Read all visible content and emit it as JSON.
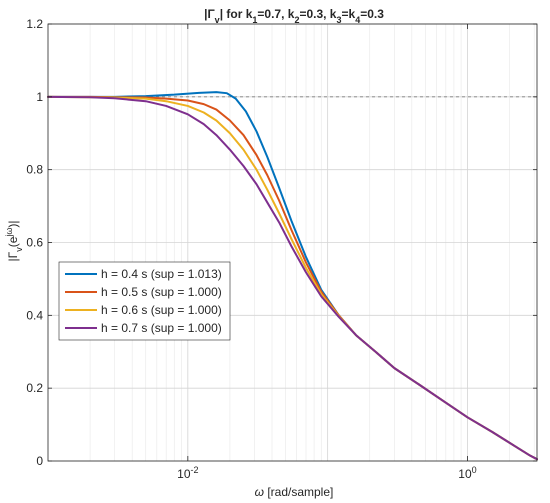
{
  "chart_data": {
    "type": "line",
    "title": {
      "prefix": "|Γ",
      "prefix_sub": "v",
      "mid": "|  for  k",
      "k1_sub": "1",
      "k1_val": "=0.7,  k",
      "k2_sub": "2",
      "k2_val": "=0.3,  k",
      "k3_sub": "3",
      "k3_mid": "=k",
      "k4_sub": "4",
      "k4_val": "=0.3"
    },
    "xlabel": {
      "symbol": "ω",
      "units": " [rad/sample]"
    },
    "ylabel": {
      "pre": "|Γ",
      "sub": "v",
      "mid": "(e",
      "sup": "jω",
      "post": ")|"
    },
    "x_scale": "log",
    "xlim": [
      0.001,
      3.14159
    ],
    "ylim": [
      0,
      1.2
    ],
    "grid": true,
    "reference_line": {
      "y": 1.0,
      "style": "dashed",
      "color": "#7f7f7f"
    },
    "yticks": [
      {
        "value": 0,
        "label": "0"
      },
      {
        "value": 0.2,
        "label": "0.2"
      },
      {
        "value": 0.4,
        "label": "0.4"
      },
      {
        "value": 0.6,
        "label": "0.6"
      },
      {
        "value": 0.8,
        "label": "0.8"
      },
      {
        "value": 1.0,
        "label": "1"
      },
      {
        "value": 1.2,
        "label": "1.2"
      }
    ],
    "xticks": [
      {
        "value": 0.01,
        "base": "10",
        "exp": "-2"
      },
      {
        "value": 1,
        "base": "10",
        "exp": "0"
      }
    ],
    "legend_position": "center-left",
    "series": [
      {
        "name": "h = 0.4 s (sup = 1.013)",
        "color": "#0072BD",
        "x": [
          0.001,
          0.002,
          0.003,
          0.005,
          0.008,
          0.012,
          0.016,
          0.019,
          0.022,
          0.026,
          0.031,
          0.037,
          0.045,
          0.055,
          0.07,
          0.09,
          0.12,
          0.16,
          0.22,
          0.3,
          0.45,
          0.7,
          1.0,
          1.5,
          2.2,
          2.8,
          3.14159
        ],
        "y": [
          1.0,
          1.0,
          1.0,
          1.002,
          1.006,
          1.011,
          1.013,
          1.01,
          0.995,
          0.96,
          0.905,
          0.835,
          0.75,
          0.66,
          0.56,
          0.47,
          0.4,
          0.345,
          0.3,
          0.255,
          0.21,
          0.16,
          0.12,
          0.08,
          0.04,
          0.015,
          0.005
        ]
      },
      {
        "name": "h = 0.5 s (sup = 1.000)",
        "color": "#D95319",
        "x": [
          0.001,
          0.002,
          0.003,
          0.005,
          0.007,
          0.01,
          0.013,
          0.016,
          0.02,
          0.025,
          0.031,
          0.037,
          0.045,
          0.055,
          0.07,
          0.09,
          0.12,
          0.16,
          0.22,
          0.3,
          0.45,
          0.7,
          1.0,
          1.5,
          2.2,
          2.8,
          3.14159
        ],
        "y": [
          1.0,
          1.0,
          0.999,
          0.998,
          0.995,
          0.99,
          0.98,
          0.965,
          0.935,
          0.895,
          0.84,
          0.785,
          0.715,
          0.635,
          0.545,
          0.465,
          0.4,
          0.345,
          0.3,
          0.255,
          0.21,
          0.16,
          0.12,
          0.08,
          0.04,
          0.015,
          0.005
        ]
      },
      {
        "name": "h = 0.6 s (sup = 1.000)",
        "color": "#EDB120",
        "x": [
          0.001,
          0.002,
          0.003,
          0.005,
          0.007,
          0.01,
          0.013,
          0.016,
          0.02,
          0.025,
          0.031,
          0.037,
          0.045,
          0.055,
          0.07,
          0.09,
          0.12,
          0.16,
          0.22,
          0.3,
          0.45,
          0.7,
          1.0,
          1.5,
          2.2,
          2.8,
          3.14159
        ],
        "y": [
          1.0,
          0.999,
          0.998,
          0.995,
          0.988,
          0.975,
          0.957,
          0.935,
          0.9,
          0.855,
          0.8,
          0.745,
          0.68,
          0.61,
          0.53,
          0.458,
          0.398,
          0.345,
          0.3,
          0.255,
          0.21,
          0.16,
          0.12,
          0.08,
          0.04,
          0.015,
          0.005
        ]
      },
      {
        "name": "h = 0.7 s (sup = 1.000)",
        "color": "#7E2F8E",
        "x": [
          0.001,
          0.002,
          0.003,
          0.005,
          0.007,
          0.01,
          0.013,
          0.016,
          0.02,
          0.025,
          0.031,
          0.037,
          0.045,
          0.055,
          0.07,
          0.09,
          0.12,
          0.16,
          0.22,
          0.3,
          0.45,
          0.7,
          1.0,
          1.5,
          2.2,
          2.8,
          3.14159
        ],
        "y": [
          1.0,
          0.999,
          0.996,
          0.988,
          0.975,
          0.952,
          0.925,
          0.895,
          0.855,
          0.81,
          0.76,
          0.71,
          0.655,
          0.59,
          0.518,
          0.452,
          0.396,
          0.345,
          0.3,
          0.255,
          0.21,
          0.16,
          0.12,
          0.08,
          0.04,
          0.015,
          0.005
        ]
      }
    ]
  }
}
